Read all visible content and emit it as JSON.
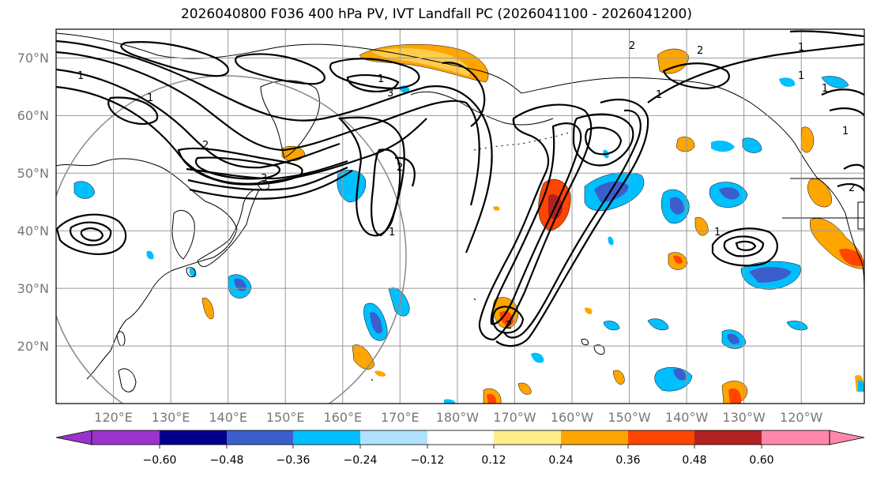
{
  "title": "2026040800 F036 400 hPa PV, IVT Landfall PC (2026041100 - 2026041200)",
  "lat_labels": [
    "70°N",
    "60°N",
    "50°N",
    "40°N",
    "30°N",
    "20°N"
  ],
  "lat_values": [
    70,
    60,
    50,
    40,
    30,
    20
  ],
  "lon_labels": [
    "120°E",
    "130°E",
    "140°E",
    "150°E",
    "160°E",
    "170°E",
    "180°W",
    "170°W",
    "160°W",
    "150°W",
    "140°W",
    "130°W",
    "120°W"
  ],
  "lon_values": [
    120,
    130,
    140,
    150,
    160,
    170,
    180,
    190,
    200,
    210,
    220,
    230,
    240
  ],
  "map_extent": {
    "lon_min": 110,
    "lon_max": 251,
    "lat_min": 10,
    "lat_max": 75
  },
  "colorbar": {
    "tick_labels": [
      "−0.60",
      "−0.48",
      "−0.36",
      "−0.24",
      "−0.12",
      "0.12",
      "0.24",
      "0.36",
      "0.48",
      "0.60"
    ],
    "colors": [
      "#9933cc",
      "#00008b",
      "#3a5fcd",
      "#00bfff",
      "#b0e2ff",
      "#ffffff",
      "#ffec8b",
      "#ffa500",
      "#ff4500",
      "#b22222",
      "#ff88aa"
    ]
  },
  "contour_labels": [
    "1",
    "1",
    "2",
    "3",
    "3",
    "1",
    "2",
    "1",
    "2",
    "1",
    "1",
    "1",
    "2",
    "2",
    "1",
    "2",
    "1",
    "1"
  ]
}
